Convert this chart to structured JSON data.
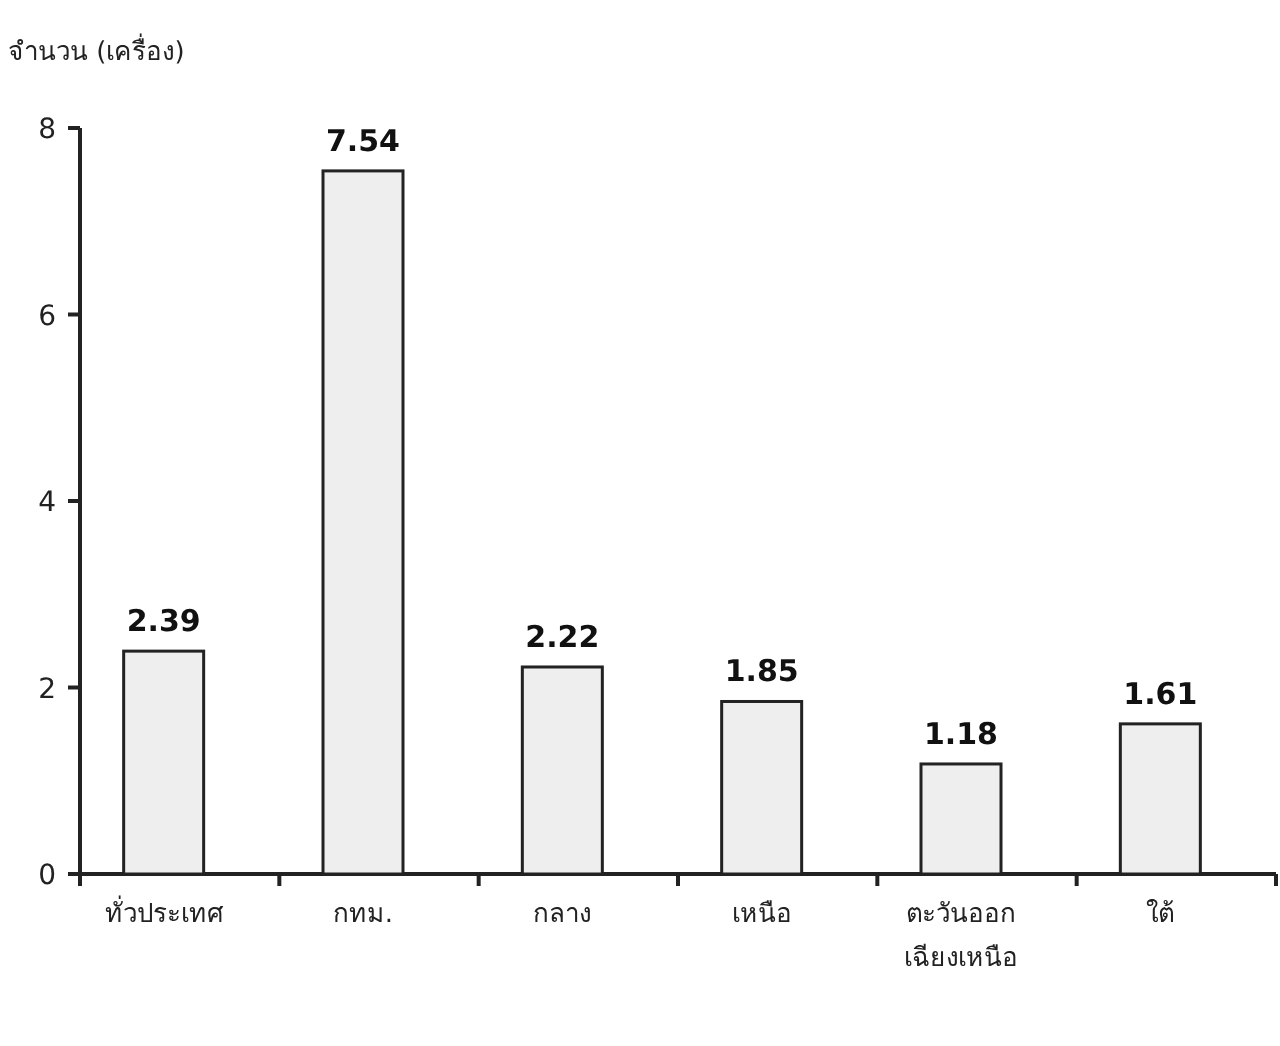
{
  "chart_data": {
    "type": "bar",
    "ylabel": "จำนวน (เครื่อง)",
    "categories": [
      "ทั่วประเทศ",
      "กทม.",
      "กลาง",
      "เหนือ",
      "ตะวันออก\nเฉียงเหนือ",
      "ใต้"
    ],
    "values": [
      2.39,
      7.54,
      2.22,
      1.85,
      1.18,
      1.61
    ],
    "color": "#eeeeee",
    "ylim": [
      0,
      8
    ],
    "yticks": [
      0,
      2,
      4,
      6,
      8
    ],
    "data_labels": true,
    "grid": false
  }
}
